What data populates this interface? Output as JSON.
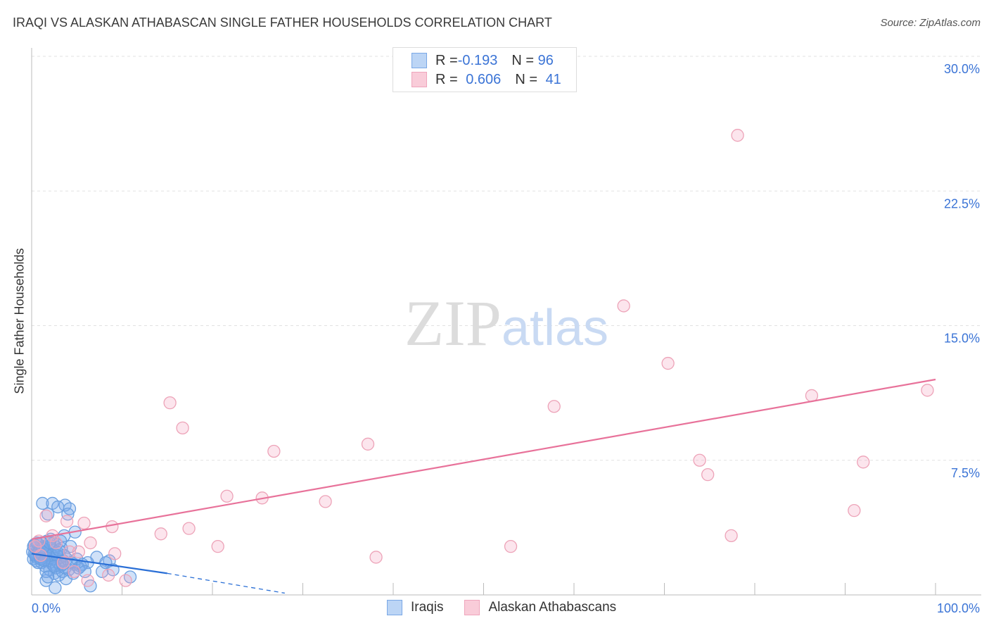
{
  "title": "IRAQI VS ALASKAN ATHABASCAN SINGLE FATHER HOUSEHOLDS CORRELATION CHART",
  "source": "Source: ZipAtlas.com",
  "watermark": "ZIPatlas",
  "colors": {
    "blue": "#6a9fe0",
    "pink": "#eda3b8",
    "blue_line": "#2a6fd6",
    "pink_line": "#e8729a",
    "tick_text": "#3b74d6"
  },
  "legend": {
    "rows": [
      {
        "r_label": "R = ",
        "r": "-0.193",
        "n_label": "N = ",
        "n": "96"
      },
      {
        "r_label": "R = ",
        "r": "0.606",
        "n_label": "N = ",
        "n": "41"
      }
    ]
  },
  "chart_data": {
    "type": "scatter",
    "title": "IRAQI VS ALASKAN ATHABASCAN SINGLE FATHER HOUSEHOLDS CORRELATION CHART",
    "xlabel": "",
    "ylabel": "Single Father Households",
    "xlim": [
      0,
      100
    ],
    "ylim": [
      0,
      30
    ],
    "x_tick_labels": [
      "0.0%",
      "100.0%"
    ],
    "y_ticks": [
      7.5,
      15,
      22.5,
      30
    ],
    "y_tick_labels": [
      "7.5%",
      "15.0%",
      "22.5%",
      "30.0%"
    ],
    "legend_placement": "bottom",
    "series": [
      {
        "name": "Iraqis",
        "trend": {
          "x": [
            0,
            15
          ],
          "y": [
            2.3,
            1.2
          ],
          "dashed_to": [
            28,
            0.1
          ]
        },
        "points": [
          [
            1.2,
            5.1
          ],
          [
            2.3,
            5.1
          ],
          [
            3.7,
            5.0
          ],
          [
            4.2,
            4.8
          ],
          [
            2.9,
            4.9
          ],
          [
            1.8,
            4.5
          ],
          [
            4.0,
            4.5
          ],
          [
            4.8,
            3.5
          ],
          [
            3.6,
            3.3
          ],
          [
            4.3,
            2.7
          ],
          [
            7.2,
            2.1
          ],
          [
            8.6,
            1.9
          ],
          [
            6.2,
            1.8
          ],
          [
            10.9,
            1.0
          ],
          [
            6.5,
            0.5
          ],
          [
            2.6,
            0.4
          ],
          [
            1.6,
            0.8
          ],
          [
            7.8,
            1.3
          ],
          [
            5.4,
            1.6
          ],
          [
            4.7,
            1.7
          ],
          [
            0.2,
            2.0
          ],
          [
            0.3,
            2.3
          ],
          [
            0.4,
            2.6
          ],
          [
            0.5,
            1.9
          ],
          [
            0.6,
            2.2
          ],
          [
            0.7,
            2.5
          ],
          [
            0.8,
            2.8
          ],
          [
            0.9,
            2.1
          ],
          [
            1.0,
            2.4
          ],
          [
            1.1,
            1.8
          ],
          [
            1.2,
            2.0
          ],
          [
            1.3,
            2.7
          ],
          [
            1.4,
            2.3
          ],
          [
            1.5,
            1.6
          ],
          [
            1.6,
            2.1
          ],
          [
            1.7,
            2.5
          ],
          [
            1.8,
            1.9
          ],
          [
            1.9,
            2.2
          ],
          [
            2.0,
            1.4
          ],
          [
            2.1,
            2.6
          ],
          [
            2.2,
            2.0
          ],
          [
            2.3,
            1.7
          ],
          [
            2.4,
            2.3
          ],
          [
            2.5,
            1.2
          ],
          [
            2.6,
            2.0
          ],
          [
            2.7,
            1.5
          ],
          [
            2.8,
            2.4
          ],
          [
            2.9,
            1.8
          ],
          [
            3.0,
            1.1
          ],
          [
            3.1,
            2.1
          ],
          [
            3.2,
            1.6
          ],
          [
            3.3,
            2.6
          ],
          [
            3.4,
            1.3
          ],
          [
            3.5,
            1.9
          ],
          [
            3.6,
            2.2
          ],
          [
            3.7,
            1.5
          ],
          [
            3.8,
            0.9
          ],
          [
            3.9,
            2.0
          ],
          [
            4.1,
            1.4
          ],
          [
            4.4,
            1.8
          ],
          [
            4.6,
            1.2
          ],
          [
            5.0,
            2.0
          ],
          [
            5.2,
            1.5
          ],
          [
            5.6,
            1.7
          ],
          [
            5.9,
            1.3
          ],
          [
            0.1,
            2.4
          ],
          [
            0.3,
            2.8
          ],
          [
            0.5,
            2.1
          ],
          [
            0.7,
            1.8
          ],
          [
            0.9,
            2.6
          ],
          [
            1.1,
            2.9
          ],
          [
            1.3,
            2.2
          ],
          [
            1.5,
            2.4
          ],
          [
            1.7,
            3.0
          ],
          [
            1.9,
            2.7
          ],
          [
            2.1,
            3.1
          ],
          [
            2.2,
            2.2
          ],
          [
            2.4,
            2.9
          ],
          [
            2.6,
            2.7
          ],
          [
            2.8,
            2.2
          ],
          [
            3.0,
            2.5
          ],
          [
            3.2,
            3.0
          ],
          [
            0.2,
            2.7
          ],
          [
            0.4,
            2.2
          ],
          [
            0.6,
            2.9
          ],
          [
            0.8,
            2.4
          ],
          [
            1.0,
            2.0
          ],
          [
            1.2,
            2.6
          ],
          [
            1.4,
            1.9
          ],
          [
            1.6,
            1.3
          ],
          [
            1.8,
            1.0
          ],
          [
            2.0,
            2.9
          ],
          [
            2.5,
            1.6
          ],
          [
            3.4,
            1.7
          ],
          [
            8.2,
            1.8
          ],
          [
            9.0,
            1.4
          ]
        ]
      },
      {
        "name": "Alaskan Athabascans",
        "trend": {
          "x": [
            0,
            100
          ],
          "y": [
            3.1,
            12.0
          ]
        },
        "points": [
          [
            78.1,
            25.6
          ],
          [
            65.5,
            16.1
          ],
          [
            70.4,
            12.9
          ],
          [
            15.3,
            10.7
          ],
          [
            57.8,
            10.5
          ],
          [
            86.3,
            11.1
          ],
          [
            99.1,
            11.4
          ],
          [
            16.7,
            9.3
          ],
          [
            26.8,
            8.0
          ],
          [
            37.2,
            8.4
          ],
          [
            73.9,
            7.5
          ],
          [
            74.8,
            6.7
          ],
          [
            92.0,
            7.4
          ],
          [
            21.6,
            5.5
          ],
          [
            25.5,
            5.4
          ],
          [
            32.5,
            5.2
          ],
          [
            91.0,
            4.7
          ],
          [
            14.3,
            3.4
          ],
          [
            17.4,
            3.7
          ],
          [
            8.9,
            3.8
          ],
          [
            5.8,
            4.0
          ],
          [
            3.9,
            4.1
          ],
          [
            1.6,
            4.4
          ],
          [
            20.6,
            2.7
          ],
          [
            53.0,
            2.7
          ],
          [
            77.4,
            3.3
          ],
          [
            38.1,
            2.1
          ],
          [
            6.5,
            2.9
          ],
          [
            9.2,
            2.3
          ],
          [
            2.3,
            3.3
          ],
          [
            0.8,
            3.0
          ],
          [
            4.2,
            2.4
          ],
          [
            5.2,
            2.4
          ],
          [
            6.2,
            0.8
          ],
          [
            8.5,
            1.1
          ],
          [
            10.4,
            0.8
          ],
          [
            2.7,
            2.9
          ],
          [
            0.4,
            2.7
          ],
          [
            3.5,
            1.8
          ],
          [
            1.0,
            2.2
          ],
          [
            4.7,
            1.3
          ]
        ]
      }
    ]
  }
}
